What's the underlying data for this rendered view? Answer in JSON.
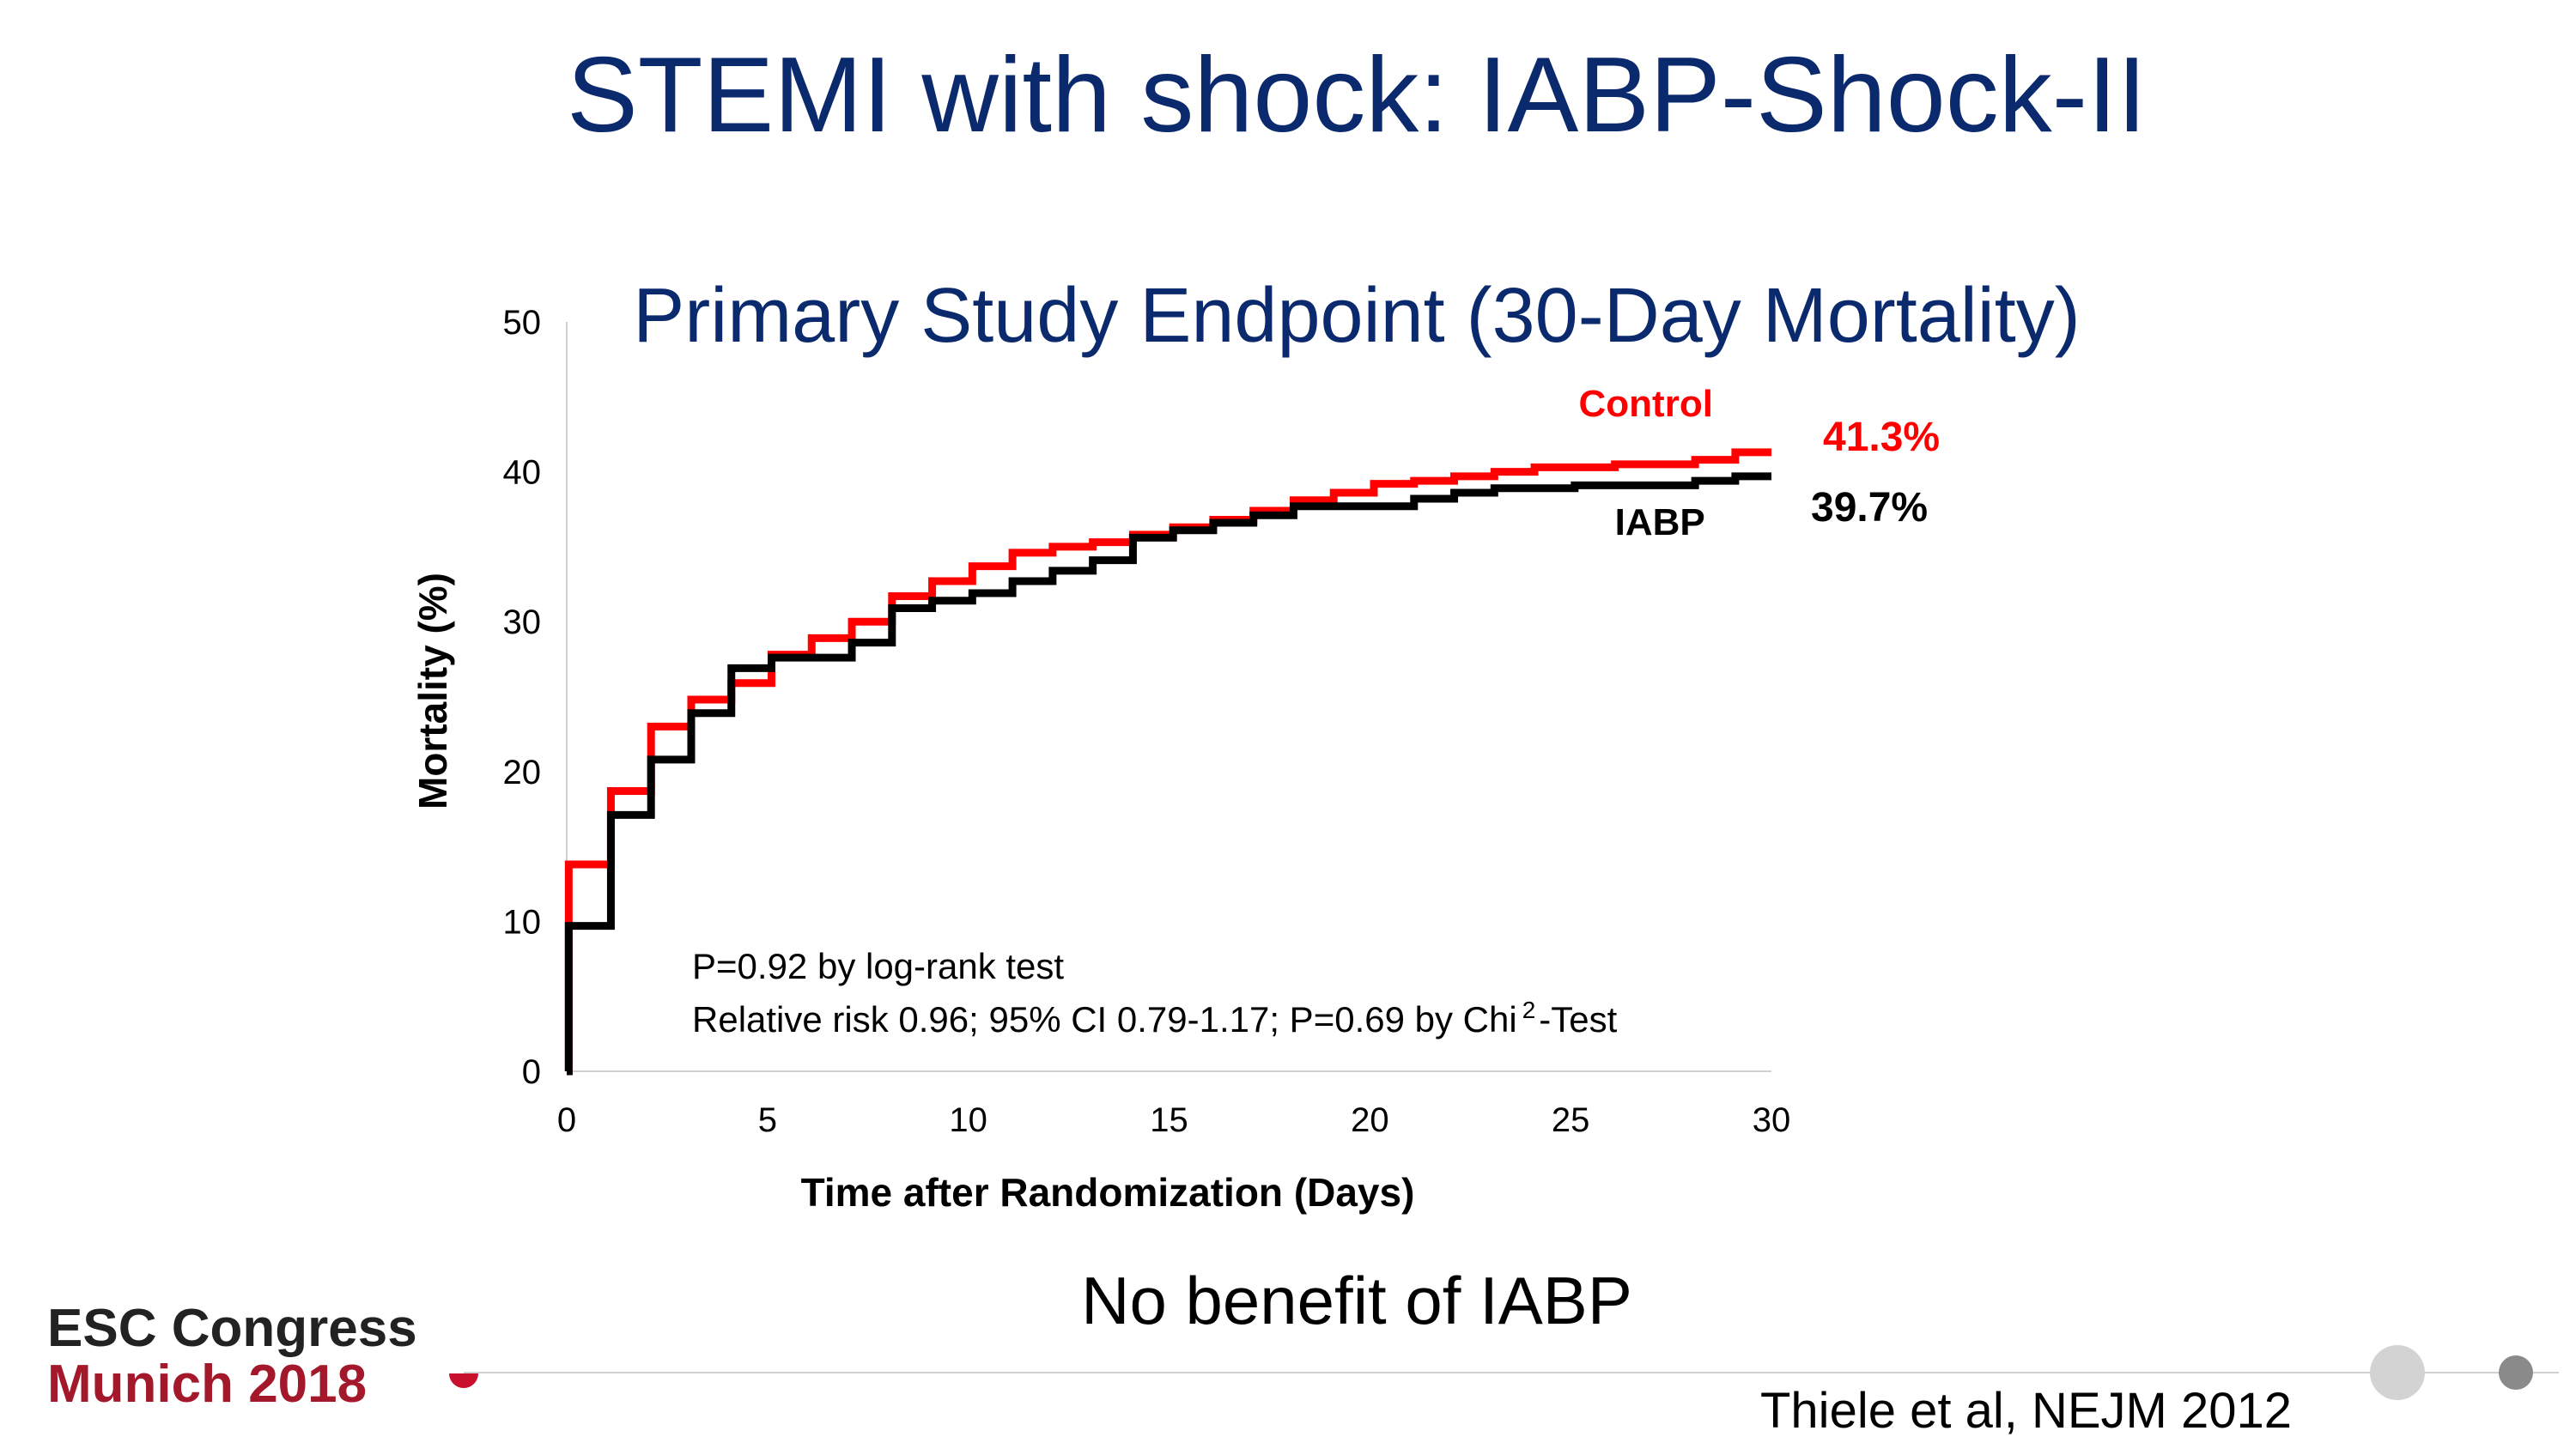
{
  "slide": {
    "title": "STEMI with shock: IABP-Shock-II",
    "conclusion": "No benefit of IABP",
    "citation": "Thiele et al, NEJM 2012"
  },
  "brand": {
    "line1": "ESC Congress",
    "line2": "Munich 2018"
  },
  "colors": {
    "title": "#0b2a6e",
    "control": "#ff0000",
    "iabp": "#000000",
    "brand_red": "#a3192b"
  },
  "chart_data": {
    "type": "line",
    "subtitle": "Primary Study Endpoint (30-Day Mortality)",
    "xlabel": "Time after Randomization (Days)",
    "ylabel": "Mortality (%)",
    "xlim": [
      0,
      30
    ],
    "ylim": [
      0,
      50
    ],
    "xticks": [
      0,
      5,
      10,
      15,
      20,
      25,
      30
    ],
    "yticks": [
      0,
      10,
      20,
      30,
      40,
      50
    ],
    "step": true,
    "series": [
      {
        "name": "Control",
        "color": "#ff0000",
        "final_label": "41.3%",
        "x": [
          0,
          0.05,
          1.1,
          2.1,
          3.1,
          4.1,
          5.1,
          6.1,
          7.1,
          8.1,
          9.1,
          10.1,
          11.1,
          12.1,
          13.1,
          14.1,
          15.1,
          16.1,
          17.1,
          18.1,
          19.1,
          20.1,
          21.1,
          22.1,
          23.1,
          24.1,
          25.1,
          26.1,
          27.1,
          28.1,
          29.1,
          30
        ],
        "y": [
          0,
          13.8,
          18.7,
          23.0,
          24.8,
          25.9,
          27.8,
          28.9,
          30.0,
          31.7,
          32.7,
          33.7,
          34.6,
          35.0,
          35.3,
          35.8,
          36.3,
          36.8,
          37.4,
          38.1,
          38.6,
          39.2,
          39.4,
          39.7,
          40.0,
          40.3,
          40.3,
          40.5,
          40.5,
          40.8,
          41.3,
          41.3
        ]
      },
      {
        "name": "IABP",
        "color": "#000000",
        "final_label": "39.7%",
        "x": [
          0,
          0.05,
          1.1,
          2.1,
          3.1,
          4.1,
          5.1,
          6.1,
          7.1,
          8.1,
          9.1,
          10.1,
          11.1,
          12.1,
          13.1,
          14.1,
          15.1,
          16.1,
          17.1,
          18.1,
          19.1,
          20.1,
          21.1,
          22.1,
          23.1,
          24.1,
          25.1,
          26.1,
          27.1,
          28.1,
          29.1,
          30
        ],
        "y": [
          0,
          9.7,
          17.1,
          20.8,
          23.9,
          26.9,
          27.6,
          27.6,
          28.6,
          30.9,
          31.4,
          31.9,
          32.7,
          33.4,
          34.1,
          35.6,
          36.1,
          36.6,
          37.1,
          37.7,
          37.7,
          37.7,
          38.2,
          38.6,
          38.9,
          38.9,
          39.1,
          39.1,
          39.1,
          39.4,
          39.7,
          39.7
        ]
      }
    ],
    "annotations": [
      "P=0.92 by log-rank test",
      "Relative risk 0.96; 95% CI 0.79-1.17; P=0.69 by Chi"
    ],
    "annotation_superscript": "2",
    "annotation_suffix": "-Test"
  }
}
